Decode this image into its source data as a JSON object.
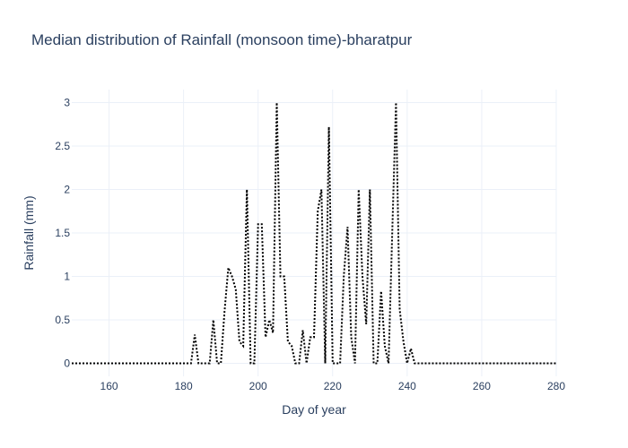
{
  "chart_data": {
    "type": "line",
    "title": "Median distribution of Rainfall (monsoon time)-bharatpur",
    "xlabel": "Day of year",
    "ylabel": "Rainfall (mm)",
    "xlim": [
      150,
      280
    ],
    "ylim": [
      -0.15,
      3.15
    ],
    "xticks": [
      160,
      180,
      200,
      220,
      240,
      260,
      280
    ],
    "yticks": [
      0,
      0.5,
      1,
      1.5,
      2,
      2.5,
      3
    ],
    "ytick_labels": [
      "0",
      "0.5",
      "1",
      "1.5",
      "2",
      "2.5",
      "3"
    ],
    "grid": true,
    "line_color": "#000000",
    "line_style": "dotted",
    "series": [
      {
        "x": [
          150,
          155,
          160,
          165,
          170,
          175,
          180,
          182,
          183,
          184,
          185,
          186,
          187,
          188,
          189,
          190,
          191,
          192,
          193,
          194,
          195,
          196,
          197,
          198,
          199,
          200,
          201,
          202,
          203,
          204,
          205,
          206,
          207,
          208,
          209,
          210,
          211,
          212,
          213,
          214,
          215,
          216,
          217,
          218,
          219,
          220,
          221,
          222,
          223,
          224,
          225,
          226,
          227,
          228,
          229,
          230,
          231,
          232,
          233,
          234,
          235,
          236,
          237,
          238,
          239,
          240,
          241,
          242,
          245,
          250,
          255,
          260,
          265,
          270,
          275,
          280
        ],
        "y": [
          0,
          0,
          0,
          0,
          0,
          0,
          0,
          0,
          0.33,
          0,
          0,
          0,
          0,
          0.5,
          0,
          0,
          0.6,
          1.1,
          1.0,
          0.85,
          0.25,
          0.2,
          2.0,
          0,
          0,
          1.6,
          1.6,
          0.3,
          0.5,
          0.35,
          3.0,
          1.0,
          1.0,
          0.25,
          0.2,
          0,
          0,
          0.38,
          0,
          0.3,
          0.3,
          1.75,
          2.0,
          0,
          2.72,
          0,
          0,
          0,
          1.0,
          1.57,
          0.3,
          0,
          2.0,
          1.0,
          0.45,
          2.0,
          0,
          0,
          0.83,
          0.2,
          0,
          1.5,
          3.0,
          0.62,
          0.25,
          0,
          0.17,
          0,
          0,
          0,
          0,
          0,
          0,
          0,
          0,
          0
        ]
      }
    ]
  }
}
